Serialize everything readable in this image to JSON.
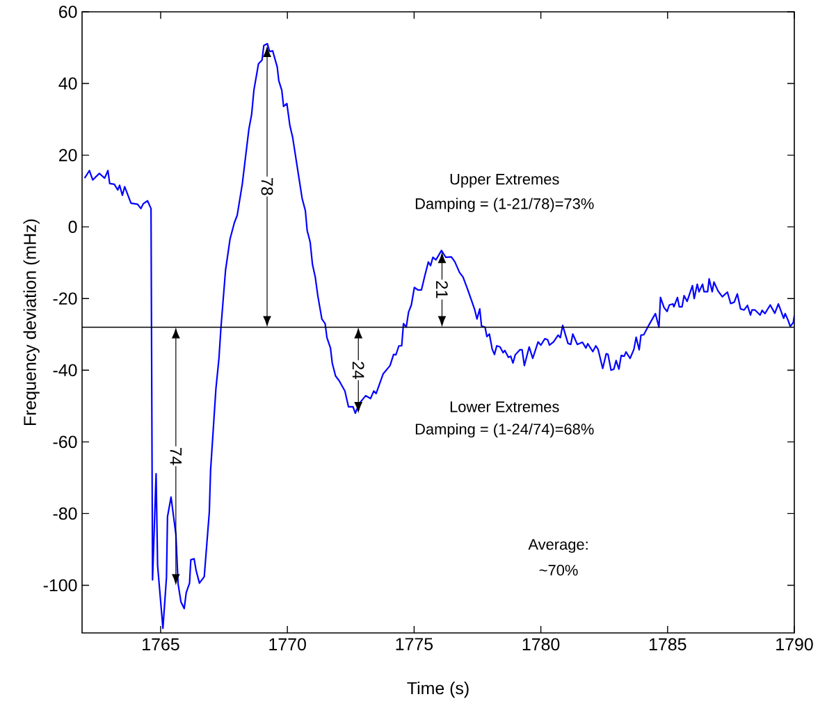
{
  "chart_data": {
    "type": "line",
    "xlabel": "Time (s)",
    "ylabel": "Frequency deviation (mHz)",
    "xlim": [
      1761.9,
      1790
    ],
    "ylim": [
      -113.3,
      60
    ],
    "xticks": [
      1765,
      1770,
      1775,
      1780,
      1785,
      1790
    ],
    "yticks": [
      -100,
      -80,
      -60,
      -40,
      -20,
      0,
      20,
      40,
      60
    ],
    "grid": false,
    "ref_lines": [
      {
        "axis": "y",
        "value": -28,
        "color": "#000000"
      }
    ],
    "annotations": [
      {
        "text": "78",
        "x": 1769.2,
        "y": 11.25
      },
      {
        "text": "74",
        "x": 1765.6,
        "y": -64
      },
      {
        "text": "24",
        "x": 1772.8,
        "y": -40
      },
      {
        "text": "21",
        "x": 1776.1,
        "y": -17.5
      },
      "Upper Extremes",
      "Damping = (1-21/78)=73%",
      "Lower Extremes",
      "Damping = (1-24/74)=68%",
      "Average:",
      "~70%"
    ],
    "series": [
      {
        "color": "#0000ff",
        "x": [
          1762.0,
          1762.19,
          1762.32,
          1762.58,
          1762.79,
          1762.92,
          1762.99,
          1763.17,
          1763.31,
          1763.38,
          1763.49,
          1763.58,
          1763.83,
          1764.09,
          1764.22,
          1764.31,
          1764.48,
          1764.62,
          1764.68,
          1764.82,
          1764.88,
          1765.09,
          1765.23,
          1765.27,
          1765.41,
          1765.6,
          1765.69,
          1765.8,
          1765.93,
          1766.01,
          1766.14,
          1766.19,
          1766.32,
          1766.4,
          1766.53,
          1766.72,
          1766.92,
          1766.97,
          1767.18,
          1767.3,
          1767.38,
          1767.56,
          1767.74,
          1767.91,
          1768.02,
          1768.22,
          1768.48,
          1768.59,
          1768.68,
          1768.86,
          1769.0,
          1769.07,
          1769.21,
          1769.3,
          1769.42,
          1769.6,
          1769.66,
          1769.78,
          1769.85,
          1769.98,
          1770.1,
          1770.21,
          1770.58,
          1770.71,
          1770.78,
          1770.9,
          1770.99,
          1771.1,
          1771.2,
          1771.36,
          1771.49,
          1771.56,
          1771.7,
          1771.77,
          1771.9,
          1772.04,
          1772.27,
          1772.41,
          1772.59,
          1772.68,
          1772.77,
          1772.86,
          1773.09,
          1773.28,
          1773.41,
          1773.5,
          1773.78,
          1774.05,
          1774.19,
          1774.28,
          1774.4,
          1774.51,
          1774.58,
          1774.69,
          1774.78,
          1774.89,
          1775.01,
          1775.15,
          1775.29,
          1775.42,
          1775.56,
          1775.65,
          1775.74,
          1775.86,
          1776.08,
          1776.25,
          1776.47,
          1776.61,
          1776.79,
          1776.93,
          1777.12,
          1777.39,
          1777.48,
          1777.59,
          1777.66,
          1777.8,
          1777.87,
          1777.97,
          1778.08,
          1778.17,
          1778.26,
          1778.39,
          1778.51,
          1778.58,
          1778.72,
          1778.81,
          1778.9,
          1778.99,
          1779.17,
          1779.26,
          1779.35,
          1779.54,
          1779.68,
          1779.89,
          1780.0,
          1780.16,
          1780.27,
          1780.34,
          1780.5,
          1780.68,
          1780.77,
          1780.86,
          1781.07,
          1781.18,
          1781.26,
          1781.44,
          1781.64,
          1781.78,
          1781.85,
          1782.05,
          1782.17,
          1782.26,
          1782.44,
          1782.58,
          1782.65,
          1782.77,
          1782.88,
          1782.97,
          1783.08,
          1783.17,
          1783.29,
          1783.36,
          1783.52,
          1783.67,
          1783.76,
          1783.88,
          1783.95,
          1784.06,
          1784.27,
          1784.52,
          1784.66,
          1784.72,
          1784.86,
          1784.98,
          1785.07,
          1785.21,
          1785.25,
          1785.39,
          1785.46,
          1785.57,
          1785.65,
          1785.77,
          1785.98,
          1786.05,
          1786.17,
          1786.24,
          1786.38,
          1786.44,
          1786.58,
          1786.64,
          1786.76,
          1786.83,
          1786.99,
          1787.16,
          1787.36,
          1787.49,
          1787.63,
          1787.75,
          1787.88,
          1788.02,
          1788.15,
          1788.27,
          1788.33,
          1788.45,
          1788.65,
          1788.73,
          1788.84,
          1789.05,
          1789.23,
          1789.37,
          1789.58,
          1789.64,
          1789.75,
          1789.84,
          1789.96,
          1790.0
        ],
        "values": [
          13.6,
          15.7,
          13.1,
          14.9,
          13.6,
          15.7,
          12.1,
          11.9,
          10.3,
          11.6,
          8.8,
          11.2,
          6.6,
          6.3,
          5.1,
          6.4,
          7.3,
          5.1,
          -98.5,
          -68.9,
          -94.5,
          -112,
          -97.8,
          -80.9,
          -75.4,
          -85.7,
          -99.7,
          -104.6,
          -106.5,
          -102,
          -99.4,
          -92.9,
          -92.6,
          -95.9,
          -99.4,
          -97.6,
          -79.6,
          -67.9,
          -45.2,
          -36.7,
          -28,
          -12.1,
          -3.3,
          1.2,
          3.2,
          11.9,
          27.2,
          31.4,
          38.2,
          45.5,
          46.5,
          50.6,
          51.1,
          48.9,
          49.1,
          44.6,
          40.8,
          38.1,
          33.6,
          34.4,
          28.2,
          24.9,
          8,
          4.5,
          -1,
          -4.3,
          -10.5,
          -14,
          -19.2,
          -25.7,
          -27,
          -30.9,
          -33.8,
          -38,
          -41.6,
          -42.9,
          -45.8,
          -50.2,
          -50.2,
          -52,
          -50.4,
          -49.1,
          -47.1,
          -47.9,
          -45.8,
          -46.5,
          -41,
          -38.7,
          -35.6,
          -35.7,
          -33.2,
          -33.2,
          -27,
          -28,
          -23.8,
          -21.8,
          -16.9,
          -17.6,
          -17.6,
          -13.7,
          -9.8,
          -10.8,
          -8.5,
          -9.2,
          -6.6,
          -8.5,
          -8.4,
          -9.8,
          -12.7,
          -14,
          -17.6,
          -23.1,
          -25.7,
          -22.9,
          -27.7,
          -28,
          -30.6,
          -29.9,
          -34.1,
          -35.6,
          -33.2,
          -33.5,
          -35.1,
          -34.5,
          -36.4,
          -36.1,
          -38,
          -35.7,
          -34.3,
          -34.3,
          -38.7,
          -33.5,
          -36.7,
          -32.1,
          -33,
          -31.2,
          -31.5,
          -33,
          -32.1,
          -30.2,
          -30.9,
          -27.5,
          -32.5,
          -32.8,
          -29.9,
          -32.8,
          -32.2,
          -33.8,
          -32.6,
          -34.8,
          -33.2,
          -34.2,
          -39.5,
          -35.4,
          -35.6,
          -40,
          -39.7,
          -37.3,
          -39.7,
          -35.9,
          -36.1,
          -34.9,
          -36.7,
          -34.2,
          -30.8,
          -34.3,
          -30.2,
          -30.1,
          -27.3,
          -24.2,
          -28,
          -19.7,
          -22.5,
          -23.6,
          -21.8,
          -21.5,
          -22.3,
          -19.7,
          -22.3,
          -22.3,
          -19.2,
          -20.8,
          -16.4,
          -20,
          -16,
          -18.1,
          -16,
          -18.1,
          -18.1,
          -14.5,
          -18.1,
          -15.4,
          -17.9,
          -19.5,
          -18.2,
          -21.4,
          -21,
          -18.7,
          -22.9,
          -23.2,
          -21.9,
          -24.6,
          -23.2,
          -23.2,
          -24.6,
          -23.3,
          -24.2,
          -21.8,
          -24.1,
          -21.5,
          -25.5,
          -24.2,
          -26,
          -27.8,
          -26.7,
          -24.7
        ]
      }
    ]
  }
}
